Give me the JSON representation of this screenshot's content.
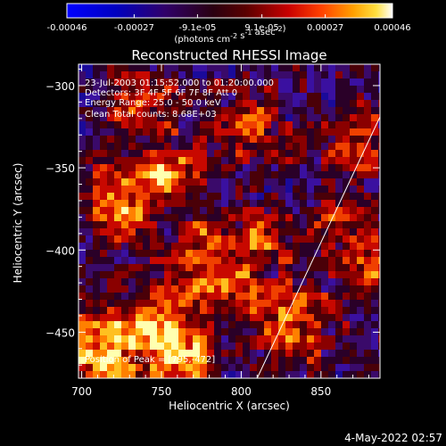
{
  "chart_data": {
    "type": "heatmap",
    "title": "Reconstructed RHESSI Image",
    "xlabel": "Heliocentric X (arcsec)",
    "ylabel": "Heliocentric Y (arcsec)",
    "xlim": [
      698,
      887
    ],
    "ylim": [
      -478,
      -287
    ],
    "xticks": [
      700,
      750,
      800,
      850
    ],
    "yticks": [
      -300,
      -350,
      -400,
      -450
    ],
    "colorbar": {
      "ticks": [
        -0.00046,
        -0.00027,
        -9.1e-05,
        9.1e-05,
        0.00027,
        0.00046
      ],
      "tick_labels": [
        "-0.00046",
        "-0.00027",
        "-9.1e-05",
        "9.1e-05",
        "0.00027",
        "0.00046"
      ],
      "unit_label": "(photons cm-2 s-1 asec-2)",
      "range": [
        -0.00046,
        0.00046
      ]
    },
    "annotations": [
      "23-Jul-2003 01:15:52.000 to 01:20:00.000",
      "Detectors: 3F 4F 5F 6F 7F 8F Att 0",
      "Energy Range: 25.0 - 50.0 keV",
      "Clean    Total counts: 8.68E+03"
    ],
    "peak_text": "Position of Peak = [795,-472]",
    "limb_line": [
      [
        810,
        -478
      ],
      [
        887,
        -319
      ]
    ]
  },
  "date_stamp": "4-May-2022 02:57"
}
